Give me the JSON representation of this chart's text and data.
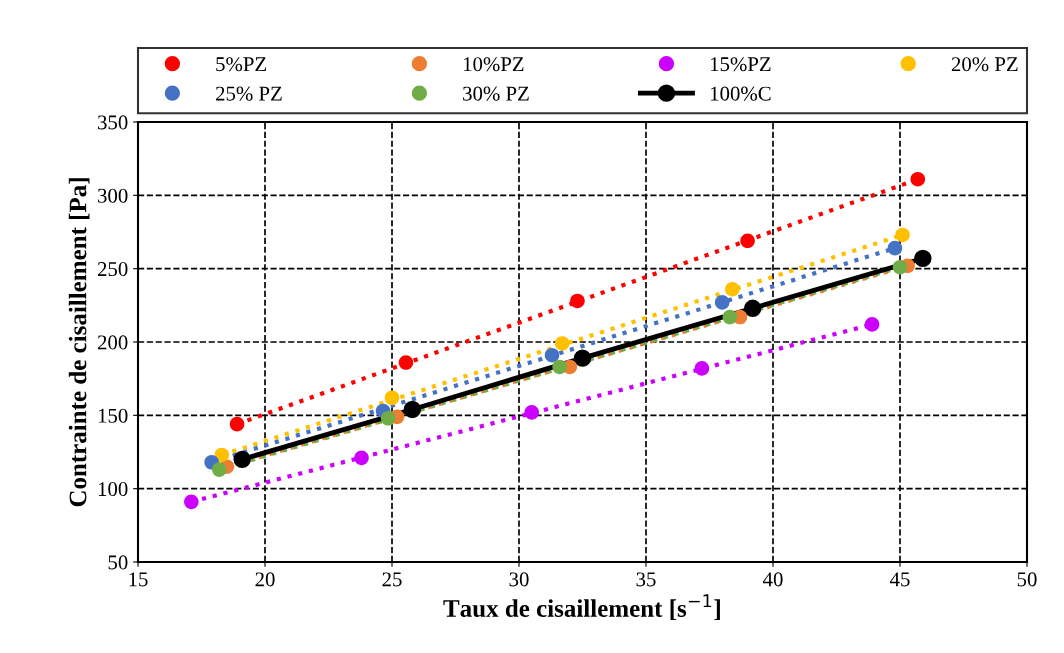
{
  "chart_data": {
    "type": "scatter",
    "xlabel": "Taux de cisaillement [s$^{−1}$]",
    "ylabel": "Contrainte de cisaillement [Pa]",
    "xlim": [
      15,
      50
    ],
    "xticks": [
      15,
      20,
      25,
      30,
      35,
      40,
      45,
      50
    ],
    "ylim": [
      50,
      350
    ],
    "yticks": [
      50,
      100,
      150,
      200,
      250,
      300,
      350
    ],
    "grid": true,
    "legend": "top",
    "marker": "circle",
    "series": [
      {
        "name": "5%PZ",
        "color": "#ff0000",
        "x": [
          18.9,
          25.55,
          32.3,
          39.0,
          45.7
        ],
        "values": [
          144,
          186,
          228,
          269,
          311
        ]
      },
      {
        "name": "10%PZ",
        "color": "#ed7d31",
        "x": [
          18.5,
          25.2,
          32.0,
          38.7,
          45.3
        ],
        "values": [
          115,
          149,
          183,
          217,
          252
        ]
      },
      {
        "name": "15%PZ",
        "color": "#cc00ff",
        "x": [
          17.1,
          23.8,
          30.5,
          37.2,
          43.9
        ],
        "values": [
          91,
          121,
          152,
          182,
          212
        ]
      },
      {
        "name": "20% PZ",
        "color": "#ffc000",
        "x": [
          18.3,
          25.0,
          31.7,
          38.4,
          45.1
        ],
        "values": [
          123,
          162,
          199,
          236,
          273
        ]
      },
      {
        "name": "25% PZ",
        "color": "#4472c4",
        "x": [
          17.9,
          24.65,
          31.3,
          38.0,
          44.8
        ],
        "values": [
          118,
          153,
          191,
          227,
          264
        ]
      },
      {
        "name": "30% PZ",
        "color": "#70ad47",
        "x": [
          18.2,
          24.85,
          31.6,
          38.3,
          45.0
        ],
        "values": [
          113,
          148,
          183,
          217,
          251
        ]
      },
      {
        "name": "100%C",
        "type": "line",
        "color": "#000000",
        "line_style": "solid",
        "x": [
          19.1,
          25.8,
          32.5,
          39.2,
          45.9
        ],
        "values": [
          120,
          154,
          189,
          223,
          257
        ]
      },
      {
        "type": "line",
        "color": "#ff0000",
        "line_style": "dotted",
        "marker": "none",
        "x": [
          18.9,
          45.7
        ],
        "values": [
          144,
          311
        ]
      },
      {
        "type": "line",
        "color": "#ed7d31",
        "line_style": "dotted",
        "marker": "none",
        "x": [
          18.5,
          45.3
        ],
        "values": [
          115,
          252
        ]
      },
      {
        "type": "line",
        "color": "#cc00ff",
        "line_style": "dotted",
        "marker": "none",
        "x": [
          17.1,
          43.9
        ],
        "values": [
          91,
          212
        ]
      },
      {
        "type": "line",
        "color": "#ffc000",
        "line_style": "dotted",
        "marker": "none",
        "x": [
          18.3,
          45.1
        ],
        "values": [
          123,
          273
        ]
      },
      {
        "type": "line",
        "color": "#4472c4",
        "line_style": "dotted",
        "marker": "none",
        "x": [
          17.9,
          44.8
        ],
        "values": [
          118,
          264
        ]
      },
      {
        "type": "line",
        "color": "#70ad47",
        "line_style": "dotted",
        "marker": "none",
        "x": [
          18.2,
          45.0
        ],
        "values": [
          113,
          251
        ]
      }
    ]
  }
}
